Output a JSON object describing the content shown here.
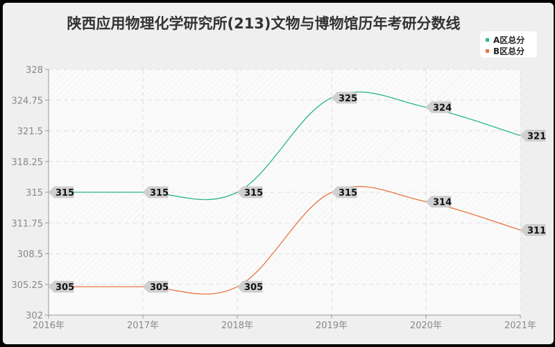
{
  "chart_data": {
    "type": "line",
    "title": "陕西应用物理化学研究所(213)文物与博物馆历年考研分数线",
    "xlabel": "",
    "ylabel": "",
    "categories": [
      "2016年",
      "2017年",
      "2018年",
      "2019年",
      "2020年",
      "2021年"
    ],
    "series": [
      {
        "name": "A区总分",
        "color": "#2bb58d",
        "values": [
          315,
          315,
          315,
          325,
          324,
          321
        ]
      },
      {
        "name": "B区总分",
        "color": "#e8733d",
        "values": [
          305,
          305,
          305,
          315,
          314,
          311
        ]
      }
    ],
    "ylim": [
      302,
      328
    ],
    "yticks": [
      "328",
      "324.75",
      "321.5",
      "318.25",
      "315",
      "311.75",
      "308.5",
      "305.25",
      "302"
    ],
    "grid": true,
    "legend_position": "top-right",
    "smooth": true
  },
  "legend": {
    "items": [
      {
        "label": "A区总分",
        "color": "#2bb58d"
      },
      {
        "label": "B区总分",
        "color": "#e8733d"
      }
    ]
  }
}
